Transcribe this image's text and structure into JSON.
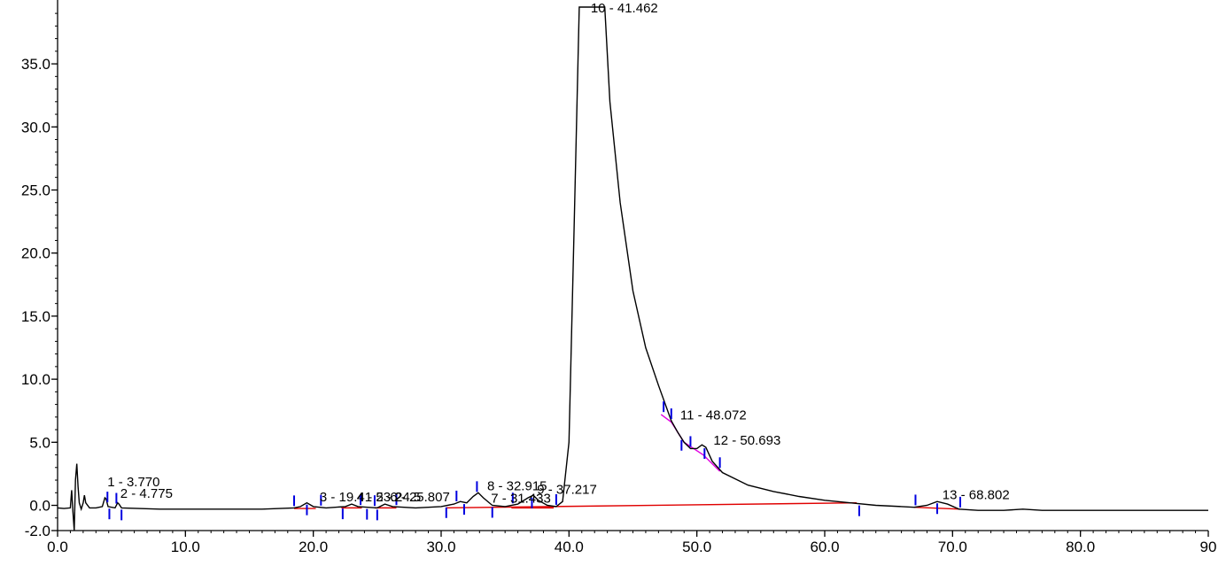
{
  "chart_data": {
    "type": "line",
    "title": "",
    "xlabel": "",
    "ylabel": "",
    "xlim": [
      0,
      90
    ],
    "ylim": [
      -2,
      39.5
    ],
    "x_ticks": [
      {
        "value": 0,
        "label": "0.0"
      },
      {
        "value": 10,
        "label": "10.0"
      },
      {
        "value": 20,
        "label": "20.0"
      },
      {
        "value": 30,
        "label": "30.0"
      },
      {
        "value": 40,
        "label": "40.0"
      },
      {
        "value": 50,
        "label": "50.0"
      },
      {
        "value": 60,
        "label": "60.0"
      },
      {
        "value": 70,
        "label": "70.0"
      },
      {
        "value": 80,
        "label": "80.0"
      },
      {
        "value": 90,
        "label": "90"
      }
    ],
    "y_ticks": [
      {
        "value": -2,
        "label": "-2.0"
      },
      {
        "value": 0,
        "label": "0.0"
      },
      {
        "value": 5,
        "label": "5.0"
      },
      {
        "value": 10,
        "label": "10.0"
      },
      {
        "value": 15,
        "label": "15.0"
      },
      {
        "value": 20,
        "label": "20.0"
      },
      {
        "value": 25,
        "label": "25.0"
      },
      {
        "value": 30,
        "label": "30.0"
      },
      {
        "value": 35,
        "label": "35.0"
      }
    ],
    "colors": {
      "trace": "#000000",
      "baseline": "#e00000",
      "shoulder_baseline": "#e000e0",
      "markers": "#0000e0"
    },
    "trace": [
      [
        0.0,
        -0.2
      ],
      [
        0.5,
        -0.25
      ],
      [
        1.0,
        -0.2
      ],
      [
        1.1,
        1.2
      ],
      [
        1.2,
        -0.5
      ],
      [
        1.3,
        -2.0
      ],
      [
        1.4,
        2.0
      ],
      [
        1.5,
        3.3
      ],
      [
        1.6,
        1.5
      ],
      [
        1.7,
        0.2
      ],
      [
        1.85,
        -0.3
      ],
      [
        2.0,
        0.2
      ],
      [
        2.1,
        0.8
      ],
      [
        2.2,
        0.2
      ],
      [
        2.5,
        -0.2
      ],
      [
        3.0,
        -0.2
      ],
      [
        3.5,
        -0.1
      ],
      [
        3.7,
        0.6
      ],
      [
        3.8,
        0.5
      ],
      [
        3.95,
        -0.1
      ],
      [
        4.5,
        -0.2
      ],
      [
        4.7,
        0.2
      ],
      [
        4.8,
        0.1
      ],
      [
        5.0,
        -0.2
      ],
      [
        8.0,
        -0.3
      ],
      [
        12.0,
        -0.3
      ],
      [
        16.0,
        -0.3
      ],
      [
        18.5,
        -0.2
      ],
      [
        19.0,
        -0.1
      ],
      [
        19.5,
        0.2
      ],
      [
        20.0,
        -0.1
      ],
      [
        21.0,
        -0.2
      ],
      [
        22.5,
        -0.1
      ],
      [
        23.0,
        0.1
      ],
      [
        23.5,
        -0.1
      ],
      [
        25.0,
        -0.2
      ],
      [
        25.6,
        0.1
      ],
      [
        26.2,
        -0.1
      ],
      [
        28.0,
        -0.2
      ],
      [
        30.0,
        -0.1
      ],
      [
        31.0,
        0.1
      ],
      [
        31.5,
        0.3
      ],
      [
        32.0,
        0.2
      ],
      [
        32.5,
        0.7
      ],
      [
        32.9,
        1.0
      ],
      [
        33.3,
        0.6
      ],
      [
        34.0,
        0.0
      ],
      [
        35.0,
        -0.1
      ],
      [
        36.0,
        0.1
      ],
      [
        36.8,
        0.6
      ],
      [
        37.2,
        0.8
      ],
      [
        37.6,
        0.4
      ],
      [
        38.3,
        0.0
      ],
      [
        39.0,
        -0.1
      ],
      [
        39.5,
        0.3
      ],
      [
        40.0,
        5.0
      ],
      [
        40.4,
        22.0
      ],
      [
        40.8,
        39.5
      ],
      [
        42.8,
        39.5
      ],
      [
        43.2,
        32.0
      ],
      [
        44.0,
        24.0
      ],
      [
        45.0,
        17.0
      ],
      [
        46.0,
        12.5
      ],
      [
        47.0,
        9.5
      ],
      [
        48.0,
        6.7
      ],
      [
        48.5,
        5.8
      ],
      [
        49.0,
        5.0
      ],
      [
        49.5,
        4.5
      ],
      [
        50.0,
        4.5
      ],
      [
        50.4,
        4.8
      ],
      [
        50.7,
        4.6
      ],
      [
        51.2,
        3.5
      ],
      [
        52.0,
        2.6
      ],
      [
        54.0,
        1.6
      ],
      [
        56.0,
        1.1
      ],
      [
        58.0,
        0.7
      ],
      [
        60.0,
        0.4
      ],
      [
        62.0,
        0.2
      ],
      [
        64.0,
        0.0
      ],
      [
        66.0,
        -0.1
      ],
      [
        67.0,
        -0.15
      ],
      [
        68.0,
        0.0
      ],
      [
        68.8,
        0.3
      ],
      [
        69.6,
        0.1
      ],
      [
        70.5,
        -0.3
      ],
      [
        72.0,
        -0.4
      ],
      [
        74.0,
        -0.4
      ],
      [
        75.5,
        -0.3
      ],
      [
        77.0,
        -0.4
      ],
      [
        80.0,
        -0.4
      ],
      [
        85.0,
        -0.4
      ],
      [
        90.0,
        -0.4
      ]
    ],
    "baselines": [
      {
        "color_role": "baseline",
        "points": [
          [
            18.5,
            -0.25
          ],
          [
            20.2,
            -0.25
          ]
        ]
      },
      {
        "color_role": "baseline",
        "points": [
          [
            22.2,
            -0.2
          ],
          [
            23.8,
            -0.2
          ]
        ]
      },
      {
        "color_role": "baseline",
        "points": [
          [
            24.8,
            -0.2
          ],
          [
            26.5,
            -0.2
          ]
        ]
      },
      {
        "color_role": "baseline",
        "points": [
          [
            35.5,
            -0.2
          ],
          [
            38.8,
            -0.2
          ]
        ]
      },
      {
        "color_role": "baseline",
        "points": [
          [
            30.4,
            -0.2
          ],
          [
            62.5,
            0.2
          ]
        ]
      },
      {
        "color_role": "baseline",
        "points": [
          [
            67.0,
            -0.15
          ],
          [
            70.6,
            -0.3
          ]
        ]
      },
      {
        "color_role": "shoulder_baseline",
        "points": [
          [
            47.2,
            7.2
          ],
          [
            48.0,
            6.6
          ],
          [
            49.0,
            5.0
          ]
        ]
      },
      {
        "color_role": "shoulder_baseline",
        "points": [
          [
            49.0,
            5.0
          ],
          [
            50.5,
            4.0
          ],
          [
            51.8,
            2.7
          ]
        ]
      }
    ],
    "markers": [
      3.9,
      4.05,
      4.6,
      5.0,
      18.5,
      19.5,
      20.6,
      22.3,
      23.7,
      24.2,
      24.8,
      25.0,
      26.5,
      30.4,
      31.2,
      31.8,
      32.8,
      34.0,
      35.6,
      37.1,
      39.0,
      47.4,
      48.0,
      48.8,
      49.5,
      50.6,
      51.8,
      62.7,
      67.1,
      68.8,
      70.6
    ],
    "peaks": [
      {
        "label": "1 - 3.770",
        "rt": 3.77,
        "height": 1.0
      },
      {
        "label": "2 - 4.775",
        "rt": 4.775,
        "height": 0.1
      },
      {
        "label": "3 - 19.41",
        "rt": 19.41,
        "height": 0.2
      },
      {
        "label": "4 - 23.2",
        "rt": 23.2,
        "height": 0.1
      },
      {
        "label": "5 - 24.5",
        "rt": 24.5,
        "height": 0.1
      },
      {
        "label": "6 - 25.807",
        "rt": 25.807,
        "height": 0.1
      },
      {
        "label": "7 - 31.433",
        "rt": 31.433,
        "height": 0.3
      },
      {
        "label": "8 - 32.915",
        "rt": 32.915,
        "height": 1.0
      },
      {
        "label": "9 - 37.217",
        "rt": 37.217,
        "height": 0.8
      },
      {
        "label": "10 - 41.462",
        "rt": 41.462,
        "height": 39.5
      },
      {
        "label": "11 - 48.072",
        "rt": 48.072,
        "height": 6.7
      },
      {
        "label": "12 - 50.693",
        "rt": 50.693,
        "height": 4.6
      },
      {
        "label": "13 - 68.802",
        "rt": 68.802,
        "height": 0.3
      }
    ]
  }
}
